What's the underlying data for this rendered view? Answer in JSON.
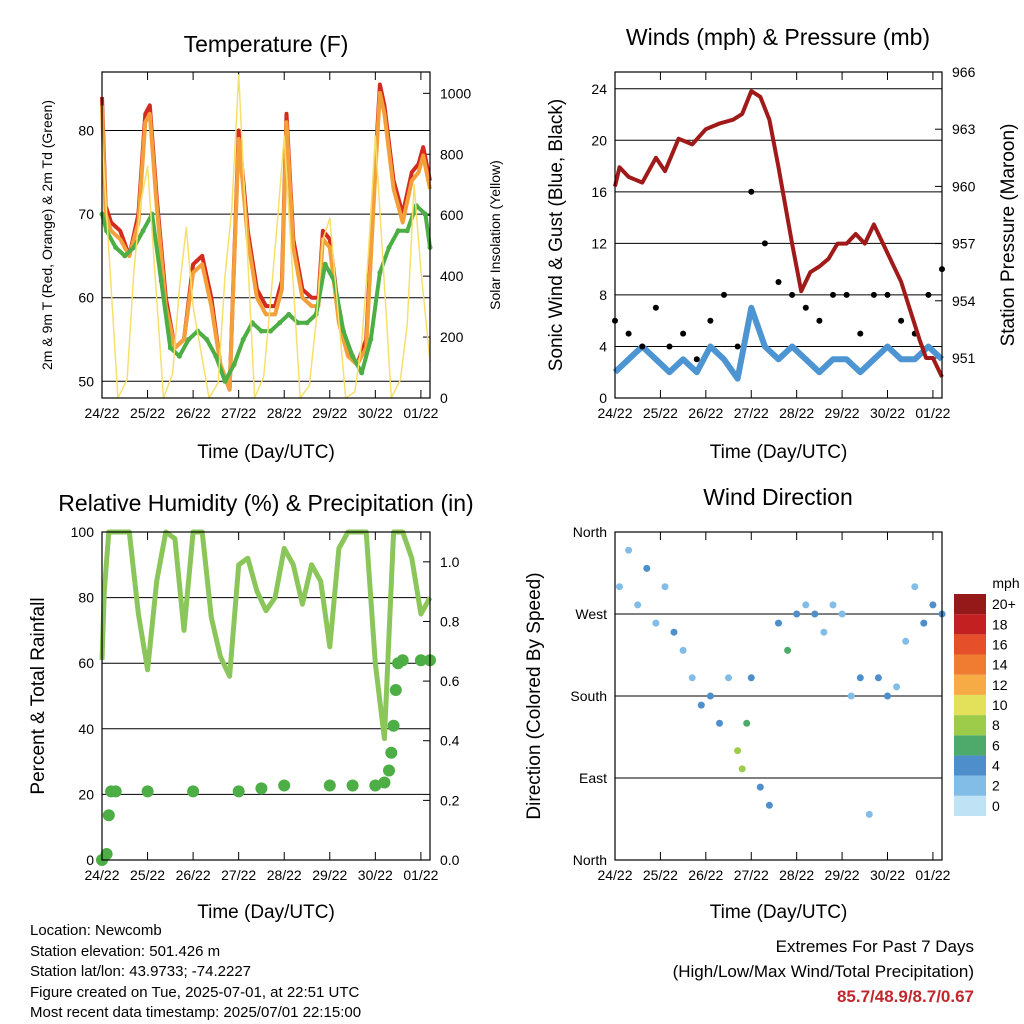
{
  "chart_data": [
    {
      "type": "line",
      "title": "Temperature (F)",
      "xlabel": "Time (Day/UTC)",
      "ylabel": "2m & 9m T (Red, Orange) & 2m Td (Green)",
      "y2label": "Solar Insolation (Yellow)",
      "x_ticks": [
        "24/22",
        "25/22",
        "26/22",
        "27/22",
        "28/22",
        "29/22",
        "30/22",
        "01/22"
      ],
      "ylim": [
        48,
        87
      ],
      "y_ticks": [
        50,
        60,
        70,
        80
      ],
      "y2lim": [
        0,
        1070
      ],
      "y2_ticks": [
        0,
        200,
        400,
        600,
        800,
        1000
      ],
      "grid": true,
      "series": [
        {
          "name": "2m T",
          "color": "#d42a20",
          "x": [
            0,
            0.08,
            0.2,
            0.4,
            0.6,
            0.8,
            0.95,
            1.05,
            1.2,
            1.4,
            1.6,
            1.8,
            2.0,
            2.2,
            2.4,
            2.6,
            2.8,
            3.0,
            3.2,
            3.4,
            3.6,
            3.8,
            3.95,
            4.05,
            4.2,
            4.4,
            4.6,
            4.75,
            4.85,
            5.0,
            5.2,
            5.4,
            5.6,
            5.8,
            6.0,
            6.1,
            6.2,
            6.4,
            6.6,
            6.8,
            6.95,
            7.05,
            7.2
          ],
          "y": [
            84,
            71,
            69,
            68,
            65,
            70,
            82,
            83,
            72,
            60,
            54,
            55,
            64,
            65,
            60,
            52,
            49,
            80,
            68,
            61,
            59,
            59,
            62,
            82,
            67,
            61,
            60,
            60,
            68,
            67,
            58,
            54,
            52,
            55,
            76,
            85.5,
            83,
            74,
            70,
            75,
            76,
            78,
            74
          ]
        },
        {
          "name": "9m T",
          "color": "#f4a03a",
          "x": [
            0,
            0.08,
            0.2,
            0.4,
            0.6,
            0.8,
            0.95,
            1.05,
            1.2,
            1.4,
            1.6,
            1.8,
            2.0,
            2.2,
            2.4,
            2.6,
            2.8,
            3.0,
            3.2,
            3.4,
            3.6,
            3.8,
            3.95,
            4.05,
            4.2,
            4.4,
            4.6,
            4.75,
            4.85,
            5.0,
            5.2,
            5.4,
            5.6,
            5.8,
            6.0,
            6.1,
            6.2,
            6.4,
            6.6,
            6.8,
            6.95,
            7.05,
            7.2
          ],
          "y": [
            83,
            70,
            68,
            67,
            65,
            69,
            81,
            82,
            71,
            59,
            54,
            55,
            63,
            64,
            59,
            52,
            49,
            79,
            67,
            60,
            58,
            58,
            61,
            81,
            66,
            60,
            59,
            59,
            67,
            66,
            57,
            53,
            52,
            54,
            75,
            84.5,
            82,
            73,
            69,
            74,
            75,
            77,
            73
          ]
        },
        {
          "name": "2m Td",
          "color": "#4cae44",
          "x": [
            0,
            0.1,
            0.3,
            0.5,
            0.7,
            0.9,
            1.1,
            1.3,
            1.5,
            1.7,
            1.9,
            2.1,
            2.3,
            2.5,
            2.7,
            2.9,
            3.1,
            3.3,
            3.5,
            3.7,
            3.9,
            4.1,
            4.3,
            4.5,
            4.7,
            4.9,
            5.1,
            5.3,
            5.5,
            5.7,
            5.9,
            6.1,
            6.3,
            6.5,
            6.7,
            6.9,
            7.1,
            7.2
          ],
          "y": [
            70,
            68,
            66,
            65,
            66,
            68,
            70,
            62,
            54,
            53,
            55,
            56,
            55,
            53,
            50,
            52,
            55,
            57,
            56,
            56,
            57,
            58,
            57,
            57,
            58,
            64,
            62,
            56,
            53,
            51,
            55,
            63,
            66,
            68,
            68,
            71,
            70,
            66
          ]
        },
        {
          "name": "Solar Insolation",
          "color": "#f8df6a",
          "axis": "y2",
          "x": [
            0,
            0.35,
            0.55,
            0.7,
            0.85,
            1.0,
            1.35,
            1.55,
            1.7,
            1.85,
            2.0,
            2.35,
            2.55,
            2.7,
            2.85,
            3.0,
            3.35,
            3.55,
            3.7,
            3.85,
            4.0,
            4.35,
            4.55,
            4.7,
            4.85,
            5.0,
            5.35,
            5.55,
            5.7,
            5.85,
            6.0,
            6.35,
            6.55,
            6.7,
            6.85,
            7.0,
            7.2
          ],
          "y": [
            850,
            0,
            60,
            420,
            640,
            760,
            0,
            80,
            360,
            560,
            300,
            0,
            50,
            400,
            620,
            1060,
            0,
            70,
            320,
            580,
            860,
            0,
            40,
            250,
            520,
            590,
            0,
            20,
            180,
            480,
            860,
            0,
            60,
            240,
            700,
            420,
            120
          ]
        }
      ]
    },
    {
      "type": "line",
      "title": "Winds (mph) & Pressure (mb)",
      "xlabel": "Time (Day/UTC)",
      "ylabel": "Sonic Wind & Gust (Blue, Black)",
      "y2label": "Station Pressure (Maroon)",
      "x_ticks": [
        "24/22",
        "25/22",
        "26/22",
        "27/22",
        "28/22",
        "29/22",
        "30/22",
        "01/22"
      ],
      "ylim": [
        0,
        25.3
      ],
      "y_ticks": [
        0,
        4,
        8,
        12,
        16,
        20,
        24
      ],
      "y2lim": [
        948.9,
        966.0
      ],
      "y2_ticks": [
        951,
        954,
        957,
        960,
        963,
        966
      ],
      "grid": true,
      "series": [
        {
          "name": "Sonic Wind",
          "color": "#4d95d2",
          "x": [
            0,
            0.3,
            0.6,
            0.9,
            1.2,
            1.5,
            1.8,
            2.1,
            2.4,
            2.7,
            3.0,
            3.3,
            3.6,
            3.9,
            4.2,
            4.5,
            4.8,
            5.1,
            5.4,
            5.7,
            6.0,
            6.3,
            6.6,
            6.9,
            7.2
          ],
          "y": [
            2,
            3,
            4,
            3,
            2,
            3,
            2,
            4,
            3,
            1.5,
            7,
            4,
            3,
            4,
            3,
            2,
            3,
            3,
            2,
            3,
            4,
            3,
            3,
            4,
            3
          ]
        },
        {
          "name": "Gust",
          "color": "#000000",
          "x": [
            0,
            0.3,
            0.6,
            0.9,
            1.2,
            1.5,
            1.8,
            2.1,
            2.4,
            2.7,
            3.0,
            3.3,
            3.6,
            3.9,
            4.2,
            4.5,
            4.8,
            5.1,
            5.4,
            5.7,
            6.0,
            6.3,
            6.6,
            6.9,
            7.2
          ],
          "y": [
            6,
            5,
            4,
            7,
            4,
            5,
            3,
            6,
            8,
            4,
            16,
            12,
            9,
            8,
            7,
            6,
            8,
            8,
            5,
            8,
            8,
            6,
            5,
            8,
            10
          ]
        },
        {
          "name": "Station Pressure",
          "color": "#a11a1a",
          "axis": "y2",
          "x": [
            0,
            0.1,
            0.3,
            0.6,
            0.9,
            1.1,
            1.4,
            1.7,
            2.0,
            2.3,
            2.6,
            2.8,
            3.0,
            3.2,
            3.4,
            3.6,
            3.75,
            3.9,
            4.1,
            4.3,
            4.5,
            4.7,
            4.9,
            5.1,
            5.3,
            5.5,
            5.7,
            5.9,
            6.1,
            6.3,
            6.5,
            6.7,
            6.85,
            7.0,
            7.2
          ],
          "y": [
            960,
            961,
            960.5,
            960.2,
            961.5,
            960.8,
            962.5,
            962.2,
            963,
            963.3,
            963.5,
            963.8,
            965,
            964.7,
            963.5,
            961,
            959,
            957,
            954.5,
            955.5,
            955.8,
            956.2,
            957,
            957,
            957.5,
            957,
            958,
            957,
            956,
            955,
            953.5,
            952,
            951,
            951,
            950
          ]
        }
      ]
    },
    {
      "type": "line",
      "title": "Relative Humidity (%) & Precipitation (in)",
      "xlabel": "Time (Day/UTC)",
      "ylabel": "Percent & Total Rainfall",
      "x_ticks": [
        "24/22",
        "25/22",
        "26/22",
        "27/22",
        "28/22",
        "29/22",
        "30/22",
        "01/22"
      ],
      "ylim": [
        0,
        100
      ],
      "y_ticks": [
        0,
        20,
        40,
        60,
        80,
        100
      ],
      "y2lim": [
        0,
        1.1
      ],
      "y2_ticks": [
        "0.0",
        "0.2",
        "0.4",
        "0.6",
        "0.8",
        "1.0"
      ],
      "grid": true,
      "series": [
        {
          "name": "Relative Humidity",
          "color": "#8bc65a",
          "x": [
            0,
            0.05,
            0.15,
            0.3,
            0.6,
            0.8,
            1.0,
            1.2,
            1.4,
            1.6,
            1.8,
            2.0,
            2.2,
            2.4,
            2.6,
            2.8,
            3.0,
            3.2,
            3.4,
            3.6,
            3.8,
            4.0,
            4.2,
            4.4,
            4.6,
            4.8,
            5.0,
            5.2,
            5.4,
            5.6,
            5.8,
            6.0,
            6.2,
            6.4,
            6.6,
            6.8,
            7.0,
            7.2
          ],
          "y": [
            61,
            82,
            100,
            100,
            100,
            75,
            58,
            85,
            100,
            98,
            70,
            100,
            100,
            74,
            62,
            56,
            90,
            92,
            82,
            76,
            80,
            95,
            90,
            78,
            90,
            85,
            65,
            95,
            100,
            100,
            100,
            60,
            37,
            100,
            100,
            92,
            75,
            80
          ]
        },
        {
          "name": "Total Precipitation",
          "color": "#4cae44",
          "axis": "y2",
          "x": [
            0,
            0.1,
            0.15,
            0.2,
            0.3,
            1.0,
            2.0,
            3.0,
            3.5,
            4.0,
            5.0,
            5.5,
            6.0,
            6.2,
            6.3,
            6.35,
            6.4,
            6.45,
            6.5,
            6.6,
            7.0,
            7.2
          ],
          "y": [
            0,
            0.02,
            0.15,
            0.23,
            0.23,
            0.23,
            0.23,
            0.23,
            0.24,
            0.25,
            0.25,
            0.25,
            0.25,
            0.26,
            0.3,
            0.36,
            0.45,
            0.57,
            0.66,
            0.67,
            0.67,
            0.67
          ]
        }
      ]
    },
    {
      "type": "scatter",
      "title": "Wind Direction",
      "xlabel": "Time (Day/UTC)",
      "ylabel": "Direction (Colored By Speed)",
      "x_ticks": [
        "24/22",
        "25/22",
        "26/22",
        "27/22",
        "28/22",
        "29/22",
        "30/22",
        "01/22"
      ],
      "y_ticks": [
        "North",
        "East",
        "South",
        "West",
        "North"
      ],
      "ylim": [
        0,
        360
      ],
      "colorbar": {
        "unit": "mph",
        "labels": [
          "0",
          "2",
          "4",
          "6",
          "8",
          "10",
          "12",
          "14",
          "16",
          "18",
          "20+"
        ],
        "colors": [
          "#bfe3f5",
          "#82bde8",
          "#4d8ecb",
          "#4daa6a",
          "#9ccc4a",
          "#e3e05a",
          "#f6ab44",
          "#f07c32",
          "#e5502a",
          "#c32121",
          "#961919"
        ]
      },
      "points": [
        {
          "x": 0.1,
          "dir": 300,
          "speed": 1
        },
        {
          "x": 0.3,
          "dir": 340,
          "speed": 2
        },
        {
          "x": 0.5,
          "dir": 280,
          "speed": 1
        },
        {
          "x": 0.7,
          "dir": 320,
          "speed": 3
        },
        {
          "x": 0.9,
          "dir": 260,
          "speed": 1
        },
        {
          "x": 1.1,
          "dir": 300,
          "speed": 2
        },
        {
          "x": 1.3,
          "dir": 250,
          "speed": 3
        },
        {
          "x": 1.5,
          "dir": 230,
          "speed": 2
        },
        {
          "x": 1.7,
          "dir": 200,
          "speed": 1
        },
        {
          "x": 1.9,
          "dir": 170,
          "speed": 3
        },
        {
          "x": 2.1,
          "dir": 180,
          "speed": 4
        },
        {
          "x": 2.3,
          "dir": 150,
          "speed": 3
        },
        {
          "x": 2.5,
          "dir": 200,
          "speed": 2
        },
        {
          "x": 2.7,
          "dir": 120,
          "speed": 7
        },
        {
          "x": 2.8,
          "dir": 100,
          "speed": 7
        },
        {
          "x": 2.9,
          "dir": 150,
          "speed": 5
        },
        {
          "x": 3.0,
          "dir": 200,
          "speed": 3
        },
        {
          "x": 3.2,
          "dir": 80,
          "speed": 4
        },
        {
          "x": 3.4,
          "dir": 60,
          "speed": 3
        },
        {
          "x": 3.6,
          "dir": 260,
          "speed": 4
        },
        {
          "x": 3.8,
          "dir": 230,
          "speed": 5
        },
        {
          "x": 4.0,
          "dir": 270,
          "speed": 3
        },
        {
          "x": 4.2,
          "dir": 280,
          "speed": 2
        },
        {
          "x": 4.4,
          "dir": 270,
          "speed": 3
        },
        {
          "x": 4.6,
          "dir": 250,
          "speed": 1
        },
        {
          "x": 4.8,
          "dir": 280,
          "speed": 2
        },
        {
          "x": 5.0,
          "dir": 270,
          "speed": 1
        },
        {
          "x": 5.2,
          "dir": 180,
          "speed": 2
        },
        {
          "x": 5.4,
          "dir": 200,
          "speed": 3
        },
        {
          "x": 5.6,
          "dir": 50,
          "speed": 2
        },
        {
          "x": 5.8,
          "dir": 200,
          "speed": 4
        },
        {
          "x": 6.0,
          "dir": 180,
          "speed": 3
        },
        {
          "x": 6.2,
          "dir": 190,
          "speed": 2
        },
        {
          "x": 6.4,
          "dir": 240,
          "speed": 1
        },
        {
          "x": 6.6,
          "dir": 300,
          "speed": 2
        },
        {
          "x": 6.8,
          "dir": 260,
          "speed": 3
        },
        {
          "x": 7.0,
          "dir": 280,
          "speed": 3
        },
        {
          "x": 7.2,
          "dir": 270,
          "speed": 4
        }
      ]
    }
  ],
  "station_info": {
    "location": "Location: Newcomb",
    "elevation": "Station elevation: 501.426 m",
    "latlon": "Station lat/lon: 43.9733; -74.2227",
    "created": "Figure created on Tue, 2025-07-01, at 22:51 UTC",
    "recent": "Most recent data timestamp: 2025/07/01 22:15:00"
  },
  "extremes": {
    "title": "Extremes For Past 7 Days",
    "subtitle": "(High/Low/Max Wind/Total Precipitation)",
    "values": "85.7/48.9/8.7/0.67"
  }
}
